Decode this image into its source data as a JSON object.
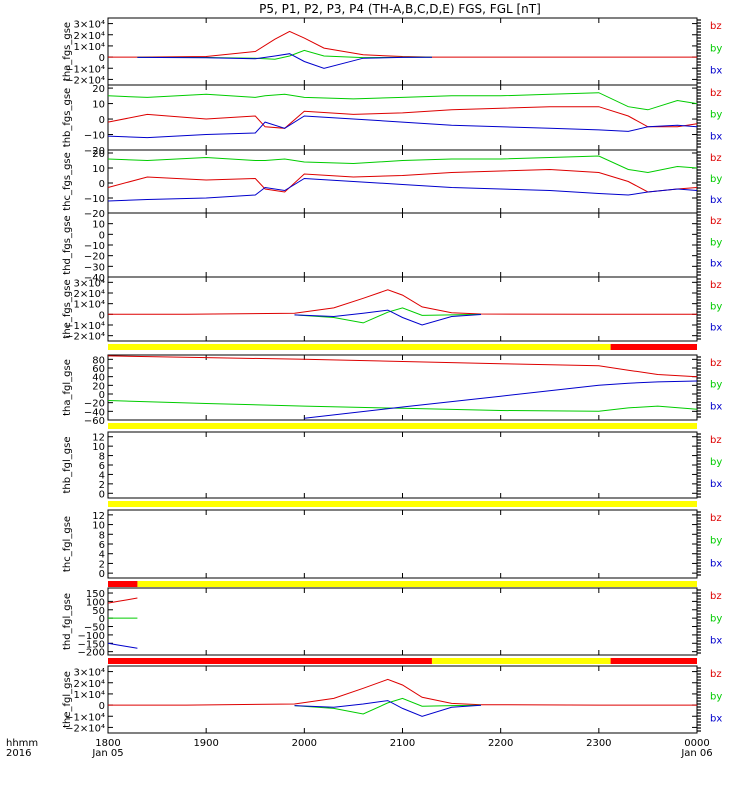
{
  "title": "P5, P1, P2, P3, P4 (TH-A,B,C,D,E) FGS, FGL [nT]",
  "x_axis": {
    "ticks": [
      "1800",
      "1900",
      "2000",
      "2100",
      "2200",
      "2300",
      "0000"
    ],
    "sublabels": [
      "Jan 05",
      "",
      "",
      "",
      "",
      "",
      "Jan 06"
    ],
    "row_label_1": "hhmm",
    "row_label_2": "2016"
  },
  "colors": {
    "bz": "#dd0000",
    "by": "#00cc00",
    "bx": "#0000cc",
    "bar_yellow": "#ffff00",
    "bar_red": "#ff0000",
    "bar_black": "#000000"
  },
  "chart_data": [
    {
      "type": "line",
      "ylabel": "tha_fgs_gse",
      "ylim": [
        -25000,
        35000
      ],
      "ytick_labels": [
        "3×10⁴",
        "2×10⁴",
        "1×10⁴",
        "0",
        "−1×10⁴",
        "−2×10⁴"
      ],
      "ytick_values": [
        30000,
        20000,
        10000,
        0,
        -10000,
        -20000
      ],
      "legend": [
        "bz",
        "by",
        "bx"
      ],
      "x": [
        1800,
        1830,
        1900,
        1950,
        1970,
        1985,
        2000,
        2020,
        2060,
        2100,
        2130,
        2200,
        2400
      ],
      "series": [
        {
          "name": "bz",
          "values": [
            0,
            0,
            500,
            5000,
            16000,
            23000,
            17000,
            8000,
            2000,
            500,
            0,
            0,
            0
          ]
        },
        {
          "name": "by",
          "values": [
            null,
            -300,
            -400,
            -1000,
            -2000,
            1000,
            6000,
            1000,
            -500,
            -200,
            -100,
            null,
            null
          ]
        },
        {
          "name": "bx",
          "values": [
            null,
            -300,
            -600,
            -1500,
            1000,
            3000,
            -4000,
            -10000,
            -1000,
            -300,
            -100,
            null,
            null
          ]
        }
      ]
    },
    {
      "type": "line",
      "ylabel": "thb_fgs_gse",
      "ylim": [
        -20,
        22
      ],
      "ytick_labels": [
        "20",
        "10",
        "0",
        "−10",
        "−20"
      ],
      "ytick_values": [
        20,
        10,
        0,
        -10,
        -20
      ],
      "legend": [
        "bz",
        "by",
        "bx"
      ],
      "x": [
        1800,
        1840,
        1900,
        1950,
        1960,
        1980,
        2000,
        2050,
        2100,
        2150,
        2200,
        2250,
        2300,
        2330,
        2350,
        2380,
        2400
      ],
      "series": [
        {
          "name": "bz",
          "values": [
            -2,
            3,
            0,
            2,
            -5,
            -6,
            5,
            3,
            4,
            6,
            7,
            8,
            8,
            2,
            -5,
            -5,
            -3
          ]
        },
        {
          "name": "by",
          "values": [
            15,
            14,
            16,
            14,
            15,
            16,
            14,
            13,
            14,
            15,
            15,
            16,
            17,
            8,
            6,
            12,
            10
          ]
        },
        {
          "name": "bx",
          "values": [
            -11,
            -12,
            -10,
            -9,
            -2,
            -6,
            2,
            0,
            -2,
            -4,
            -5,
            -6,
            -7,
            -8,
            -5,
            -4,
            -5
          ]
        }
      ]
    },
    {
      "type": "line",
      "ylabel": "thc_fgs_gse",
      "ylim": [
        -20,
        22
      ],
      "ytick_labels": [
        "20",
        "10",
        "0",
        "−10",
        "−20"
      ],
      "ytick_values": [
        20,
        10,
        0,
        -10,
        -20
      ],
      "legend": [
        "bz",
        "by",
        "bx"
      ],
      "x": [
        1800,
        1840,
        1900,
        1950,
        1960,
        1980,
        2000,
        2050,
        2100,
        2150,
        2200,
        2250,
        2300,
        2330,
        2350,
        2380,
        2400
      ],
      "series": [
        {
          "name": "bz",
          "values": [
            -3,
            4,
            2,
            3,
            -4,
            -6,
            6,
            4,
            5,
            7,
            8,
            9,
            7,
            1,
            -6,
            -4,
            -3
          ]
        },
        {
          "name": "by",
          "values": [
            16,
            15,
            17,
            15,
            15,
            16,
            14,
            13,
            15,
            16,
            16,
            17,
            18,
            9,
            7,
            11,
            10
          ]
        },
        {
          "name": "bx",
          "values": [
            -12,
            -11,
            -10,
            -8,
            -3,
            -5,
            3,
            1,
            -1,
            -3,
            -4,
            -5,
            -7,
            -8,
            -6,
            -4,
            -5
          ]
        }
      ]
    },
    {
      "type": "line",
      "ylabel": "thd_fgs_gse",
      "ylim": [
        -40,
        20
      ],
      "ytick_labels": [
        "10",
        "0",
        "−10",
        "−20",
        "−30",
        "−40"
      ],
      "ytick_values": [
        10,
        0,
        -10,
        -20,
        -30,
        -40
      ],
      "legend": [
        "bz",
        "by",
        "bx"
      ],
      "x": [],
      "series": []
    },
    {
      "type": "line",
      "ylabel": "the_fgs_gse",
      "ylim": [
        -25000,
        35000
      ],
      "ytick_labels": [
        "3×10⁴",
        "2×10⁴",
        "1×10⁴",
        "0",
        "−1×10⁴",
        "−2×10⁴"
      ],
      "ytick_values": [
        30000,
        20000,
        10000,
        0,
        -10000,
        -20000
      ],
      "legend": [
        "bz",
        "by",
        "bx"
      ],
      "x": [
        1800,
        1880,
        1990,
        2030,
        2060,
        2085,
        2100,
        2120,
        2150,
        2180,
        2300,
        2400
      ],
      "series": [
        {
          "name": "bz",
          "values": [
            0,
            0,
            1000,
            6000,
            15000,
            23000,
            18000,
            7000,
            1500,
            300,
            0,
            0
          ]
        },
        {
          "name": "by",
          "values": [
            null,
            null,
            -500,
            -3000,
            -8000,
            2000,
            6000,
            -1000,
            -500,
            -100,
            null,
            null
          ]
        },
        {
          "name": "bx",
          "values": [
            null,
            null,
            -500,
            -2000,
            1000,
            4000,
            -3000,
            -10000,
            -2000,
            -200,
            null,
            null
          ]
        }
      ]
    },
    {
      "type": "line",
      "ylabel": "tha_fgl_gse",
      "ylim": [
        -60,
        90
      ],
      "ytick_labels": [
        "80",
        "60",
        "40",
        "20",
        "0",
        "−20",
        "−40",
        "−60"
      ],
      "ytick_values": [
        80,
        60,
        40,
        20,
        0,
        -20,
        -40,
        -60
      ],
      "legend": [
        "bz",
        "by",
        "bx"
      ],
      "x": [
        1800,
        1900,
        2000,
        2100,
        2200,
        2300,
        2330,
        2360,
        2400
      ],
      "series": [
        {
          "name": "bz",
          "values": [
            88,
            84,
            80,
            75,
            70,
            65,
            55,
            45,
            40
          ]
        },
        {
          "name": "by",
          "values": [
            -15,
            -22,
            -28,
            -33,
            -38,
            -40,
            -32,
            -28,
            -35
          ]
        },
        {
          "name": "bx",
          "values": [
            null,
            null,
            -56,
            -30,
            -5,
            20,
            25,
            28,
            30
          ]
        }
      ]
    },
    {
      "type": "line",
      "ylabel": "thb_fgl_gse",
      "ylim": [
        -1,
        13
      ],
      "ytick_labels": [
        "12",
        "10",
        "8",
        "6",
        "4",
        "2",
        "0"
      ],
      "ytick_values": [
        12,
        10,
        8,
        6,
        4,
        2,
        0
      ],
      "legend": [
        "bz",
        "by",
        "bx"
      ],
      "x": [],
      "series": []
    },
    {
      "type": "line",
      "ylabel": "thc_fgl_gse",
      "ylim": [
        -1,
        13
      ],
      "ytick_labels": [
        "12",
        "10",
        "8",
        "6",
        "4",
        "2",
        "0"
      ],
      "ytick_values": [
        12,
        10,
        8,
        6,
        4,
        2,
        0
      ],
      "legend": [
        "bz",
        "by",
        "bx"
      ],
      "x": [],
      "series": []
    },
    {
      "type": "line",
      "ylabel": "thd_fgl_gse",
      "ylim": [
        -220,
        180
      ],
      "ytick_labels": [
        "150",
        "100",
        "50",
        "0",
        "−50",
        "−100",
        "−150",
        "−200"
      ],
      "ytick_values": [
        150,
        100,
        50,
        0,
        -50,
        -100,
        -150,
        -200
      ],
      "legend": [
        "bz",
        "by",
        "bx"
      ],
      "x": [
        1800,
        1810,
        1820,
        1830
      ],
      "series": [
        {
          "name": "bz",
          "values": [
            90,
            100,
            110,
            120
          ]
        },
        {
          "name": "by",
          "values": [
            0,
            0,
            0,
            0
          ]
        },
        {
          "name": "bx",
          "values": [
            -150,
            -160,
            -170,
            -180
          ]
        }
      ]
    },
    {
      "type": "line",
      "ylabel": "the_fgl_gse",
      "ylim": [
        -25000,
        35000
      ],
      "ytick_labels": [
        "3×10⁴",
        "2×10⁴",
        "1×10⁴",
        "0",
        "−1×10⁴",
        "−2×10⁴"
      ],
      "ytick_values": [
        30000,
        20000,
        10000,
        0,
        -10000,
        -20000
      ],
      "legend": [
        "bz",
        "by",
        "bx"
      ],
      "x": [
        1800,
        1880,
        1990,
        2030,
        2060,
        2085,
        2100,
        2120,
        2150,
        2180,
        2300,
        2400
      ],
      "series": [
        {
          "name": "bz",
          "values": [
            0,
            0,
            1000,
            6000,
            15000,
            23000,
            18000,
            7000,
            1500,
            300,
            0,
            0
          ]
        },
        {
          "name": "by",
          "values": [
            null,
            null,
            -500,
            -3000,
            -8000,
            2000,
            6000,
            -1000,
            -500,
            -100,
            null,
            null
          ]
        },
        {
          "name": "bx",
          "values": [
            null,
            null,
            -500,
            -2000,
            1000,
            4000,
            -3000,
            -10000,
            -2000,
            -200,
            null,
            null
          ]
        }
      ]
    }
  ],
  "status_bars": [
    {
      "after_panel": 4,
      "segments": [
        {
          "from": 1800,
          "to": 2312,
          "color": "yellow"
        },
        {
          "from": 2312,
          "to": 2400,
          "color": "red"
        }
      ]
    },
    {
      "after_panel": 5,
      "segments": [
        {
          "from": 1800,
          "to": 2400,
          "color": "yellow"
        }
      ]
    },
    {
      "after_panel": 6,
      "segments": [
        {
          "from": 1800,
          "to": 2400,
          "color": "yellow"
        }
      ]
    },
    {
      "after_panel": 7,
      "segments": [
        {
          "from": 1800,
          "to": 1830,
          "color": "red"
        },
        {
          "from": 1830,
          "to": 2400,
          "color": "yellow"
        }
      ]
    },
    {
      "after_panel": 8,
      "segments": [
        {
          "from": 1800,
          "to": 2130,
          "color": "red"
        },
        {
          "from": 2130,
          "to": 2312,
          "color": "yellow"
        },
        {
          "from": 2312,
          "to": 2400,
          "color": "red"
        }
      ]
    }
  ]
}
